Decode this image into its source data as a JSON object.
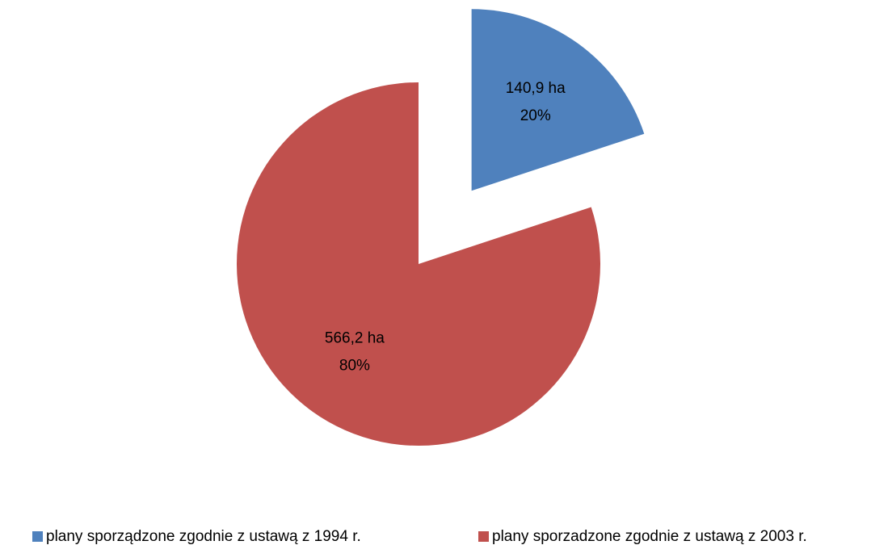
{
  "chart_data": {
    "type": "pie",
    "categories": [
      "plany sporządzone zgodnie z ustawą z 1994 r.",
      "plany sporzadzone zgodnie z ustawą z 2003 r."
    ],
    "values": [
      140.9,
      566.2
    ],
    "value_labels": [
      "140,9 ha",
      "566,2 ha"
    ],
    "percentages": [
      20,
      80
    ],
    "percentage_labels": [
      "20%",
      "80%"
    ],
    "colors": [
      "#4f81bd",
      "#c0504d"
    ],
    "legend": "bottom"
  }
}
